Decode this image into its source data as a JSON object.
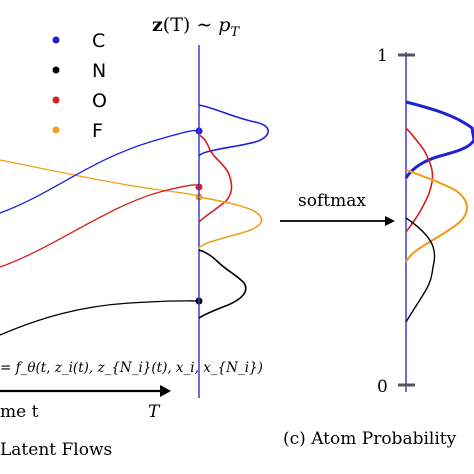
{
  "legend": {
    "items": [
      {
        "label": "C",
        "color": "#1f1fd6"
      },
      {
        "label": "N",
        "color": "#000000"
      },
      {
        "label": "O",
        "color": "#d62020"
      },
      {
        "label": "F",
        "color": "#f0a020"
      }
    ]
  },
  "header_formula": "z(T) ∼ p_T",
  "header_parts": {
    "bold": "z",
    "rest": "(T) ∼ ",
    "p": "p",
    "sub": "T"
  },
  "ode_formula": "= f_θ(t, z_i(t), z_{N_i}(t), x_i, x_{N_i})",
  "time_axis_label": "me t",
  "time_axis_end_label": "T",
  "softmax_label": "softmax",
  "caption_left": "Latent Flows",
  "caption_right": "(c) Atom Probability",
  "prob_axis": {
    "top_label": "1",
    "bottom_label": "0"
  },
  "colors": {
    "C": "#1f1fd6",
    "N": "#000000",
    "O": "#d62020",
    "F": "#f0a020",
    "axis": "#3b3bdc",
    "tick": "#555555"
  }
}
